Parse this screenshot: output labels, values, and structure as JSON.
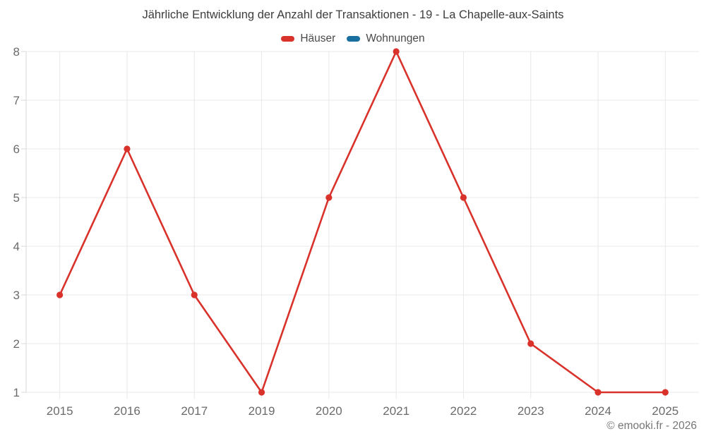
{
  "chart_data": {
    "type": "line",
    "title": "Jährliche Entwicklung der Anzahl der Transaktionen - 19 - La Chapelle-aux-Saints",
    "categories": [
      "2015",
      "2016",
      "2017",
      "2019",
      "2020",
      "2021",
      "2022",
      "2023",
      "2024",
      "2025"
    ],
    "series": [
      {
        "name": "Häuser",
        "color": "#d9322b",
        "values": [
          3,
          6,
          3,
          1,
          5,
          8,
          5,
          2,
          1,
          1
        ]
      },
      {
        "name": "Wohnungen",
        "color": "#186fa0",
        "values": []
      }
    ],
    "ylim": [
      1,
      8
    ],
    "yticks": [
      1,
      2,
      3,
      4,
      5,
      6,
      7,
      8
    ],
    "xlabel": "",
    "ylabel": "",
    "grid": true,
    "legend_position": "top-center"
  },
  "footer": {
    "credit": "© emooki.fr - 2026"
  },
  "style": {
    "background": "#ffffff",
    "grid_color": "#e8e8e8",
    "axis_color": "#d8d8d8",
    "tick_label_color": "#6b6b6b",
    "title_color": "#3d3d3d",
    "legend_text_color": "#4a4a4a",
    "footer_color": "#767676"
  }
}
